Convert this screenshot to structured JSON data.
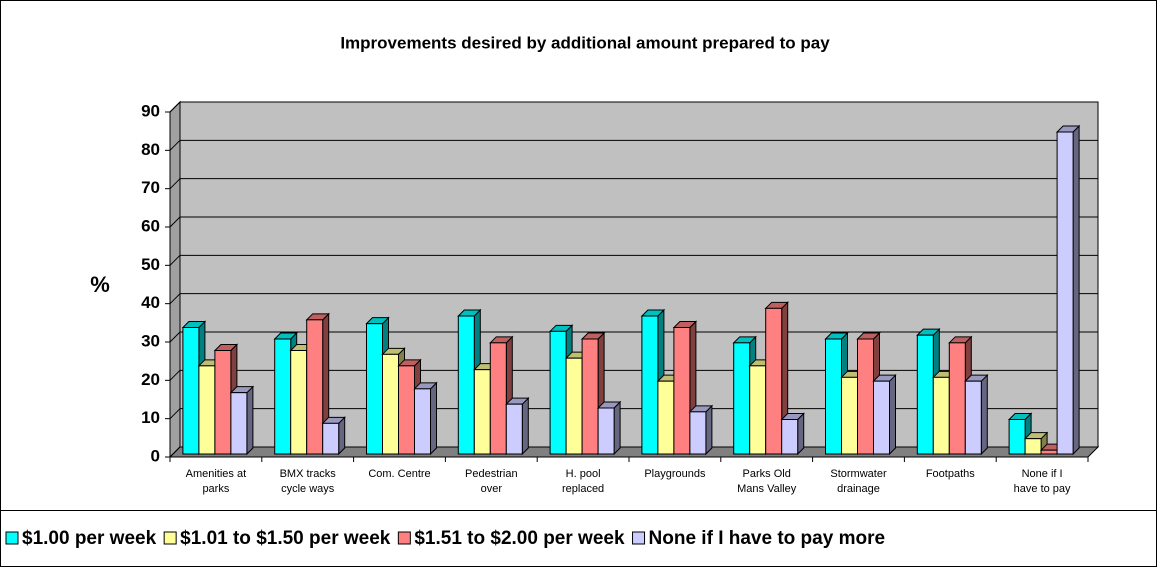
{
  "chart_data": {
    "type": "bar3d",
    "title": "Improvements desired by additional amount prepared to pay",
    "y_label": "%",
    "categories": [
      "Amenities at\nparks",
      "BMX tracks\ncycle ways",
      "Com. Centre",
      "Pedestrian\nover",
      "H. pool\nreplaced",
      "Playgrounds",
      "Parks Old\nMans Valley",
      "Stormwater\ndrainage",
      "Footpaths",
      "None if I\nhave to pay"
    ],
    "series": [
      {
        "name": "$1.00 per week",
        "color": "#00ffff",
        "values": [
          33,
          30,
          34,
          36,
          32,
          36,
          29,
          30,
          31,
          9
        ]
      },
      {
        "name": "$1.01 to $1.50 per week",
        "color": "#ffff99",
        "values": [
          23,
          27,
          26,
          22,
          25,
          19,
          23,
          20,
          20,
          4
        ]
      },
      {
        "name": "$1.51 to $2.00 per week",
        "color": "#ff8080",
        "values": [
          27,
          35,
          23,
          29,
          30,
          33,
          38,
          30,
          29,
          1
        ]
      },
      {
        "name": "None if I have to pay more",
        "color": "#ccccff",
        "values": [
          16,
          8,
          17,
          13,
          12,
          11,
          9,
          19,
          19,
          84
        ]
      }
    ],
    "ylim": [
      0,
      90
    ],
    "yticks": [
      0,
      10,
      20,
      30,
      40,
      50,
      60,
      70,
      80,
      90
    ],
    "grid": true,
    "legend": "bottom"
  }
}
